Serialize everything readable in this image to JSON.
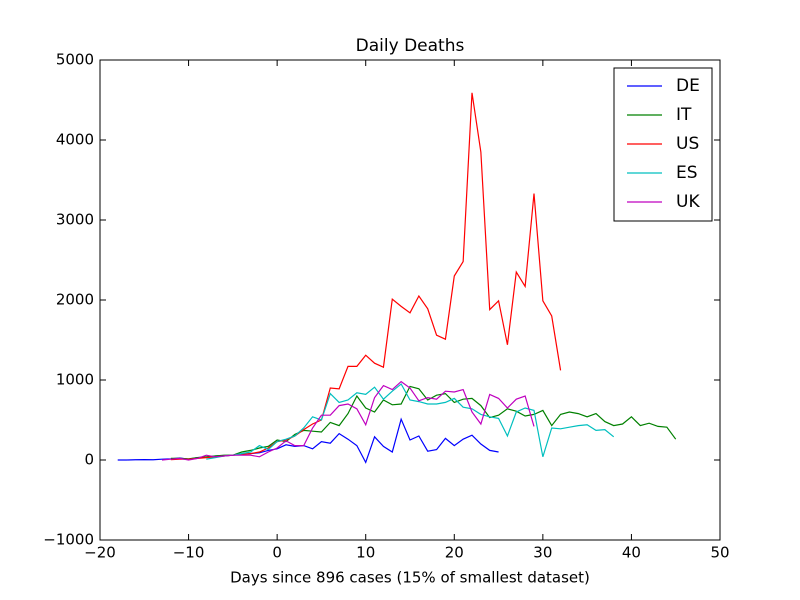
{
  "chart_data": {
    "type": "line",
    "title": "Daily Deaths",
    "x_label": "Days since 896 cases (15% of smallest dataset)",
    "x": [
      -18,
      -17,
      -16,
      -15,
      -14,
      -13,
      -12,
      -11,
      -10,
      -9,
      -8,
      -7,
      -6,
      -5,
      -4,
      -3,
      -2,
      -1,
      0,
      1,
      2,
      3,
      4,
      5,
      6,
      7,
      8,
      9,
      10,
      11,
      12,
      13,
      14,
      15,
      16,
      17,
      18,
      19,
      20,
      21,
      22,
      23,
      24,
      25,
      26,
      27,
      28,
      29,
      30,
      31,
      32,
      33,
      34,
      35,
      36,
      37,
      38,
      39,
      40,
      41,
      42,
      43,
      44,
      45
    ],
    "series": [
      {
        "name": "DE",
        "color": "#0000ff",
        "values": [
          0,
          0,
          3,
          5,
          3,
          10,
          15,
          25,
          10,
          30,
          35,
          50,
          55,
          60,
          70,
          80,
          90,
          120,
          140,
          190,
          170,
          180,
          140,
          230,
          210,
          330,
          260,
          180,
          -30,
          290,
          170,
          100,
          510,
          250,
          300,
          110,
          130,
          270,
          180,
          260,
          310,
          200,
          120,
          100,
          null,
          null,
          null,
          null,
          null,
          null,
          null,
          null,
          null,
          null,
          null,
          null,
          null,
          null,
          null,
          null,
          null,
          null,
          null,
          null
        ]
      },
      {
        "name": "IT",
        "color": "#008000",
        "values": [
          null,
          null,
          null,
          null,
          null,
          null,
          20,
          20,
          15,
          30,
          40,
          50,
          60,
          60,
          100,
          120,
          150,
          170,
          250,
          230,
          320,
          370,
          360,
          350,
          470,
          430,
          580,
          800,
          650,
          600,
          750,
          690,
          700,
          920,
          890,
          750,
          810,
          830,
          720,
          760,
          770,
          680,
          530,
          560,
          640,
          610,
          550,
          570,
          620,
          430,
          570,
          600,
          580,
          540,
          580,
          480,
          430,
          450,
          540,
          430,
          460,
          420,
          410,
          260
        ]
      },
      {
        "name": "US",
        "color": "#ff0000",
        "values": [
          null,
          null,
          null,
          null,
          null,
          null,
          5,
          10,
          10,
          20,
          30,
          40,
          50,
          60,
          70,
          80,
          100,
          150,
          230,
          250,
          300,
          380,
          450,
          500,
          900,
          890,
          1170,
          1170,
          1310,
          1210,
          1160,
          2010,
          1920,
          1840,
          2050,
          1890,
          1560,
          1510,
          2300,
          2480,
          4590,
          3850,
          1880,
          1990,
          1440,
          2350,
          2170,
          3330,
          1990,
          1800,
          1120,
          null,
          null,
          null,
          null,
          null,
          null,
          null,
          null,
          null,
          null,
          null,
          null,
          null
        ]
      },
      {
        "name": "ES",
        "color": "#00bfbf",
        "values": [
          null,
          null,
          null,
          null,
          null,
          null,
          null,
          null,
          null,
          null,
          10,
          30,
          50,
          60,
          80,
          100,
          180,
          130,
          230,
          260,
          300,
          400,
          540,
          500,
          830,
          720,
          750,
          840,
          820,
          910,
          760,
          860,
          950,
          750,
          730,
          700,
          700,
          720,
          770,
          660,
          640,
          570,
          540,
          520,
          300,
          600,
          650,
          620,
          40,
          400,
          390,
          410,
          430,
          440,
          370,
          380,
          290,
          null,
          null,
          null,
          null,
          null,
          null,
          null
        ]
      },
      {
        "name": "UK",
        "color": "#bf00bf",
        "values": [
          null,
          null,
          null,
          null,
          null,
          0,
          10,
          20,
          0,
          20,
          60,
          40,
          50,
          60,
          60,
          60,
          40,
          100,
          150,
          240,
          180,
          180,
          400,
          560,
          560,
          680,
          700,
          640,
          440,
          780,
          930,
          880,
          980,
          900,
          740,
          780,
          760,
          860,
          850,
          880,
          600,
          450,
          820,
          770,
          650,
          760,
          800,
          420,
          null,
          null,
          null,
          null,
          null,
          null,
          null,
          null,
          null,
          null,
          null,
          null,
          null,
          null,
          null,
          null
        ]
      }
    ],
    "xlim": [
      -20,
      50
    ],
    "xticks": [
      {
        "value": -20,
        "label": "−20"
      },
      {
        "value": -10,
        "label": "−10"
      },
      0,
      10,
      20,
      30,
      40,
      50
    ],
    "ylim": [
      -1000,
      5000
    ],
    "yticks": [
      {
        "value": -1000,
        "label": "−1000"
      },
      0,
      1000,
      2000,
      3000,
      4000,
      5000
    ],
    "grid": false,
    "legend": "upper right"
  }
}
